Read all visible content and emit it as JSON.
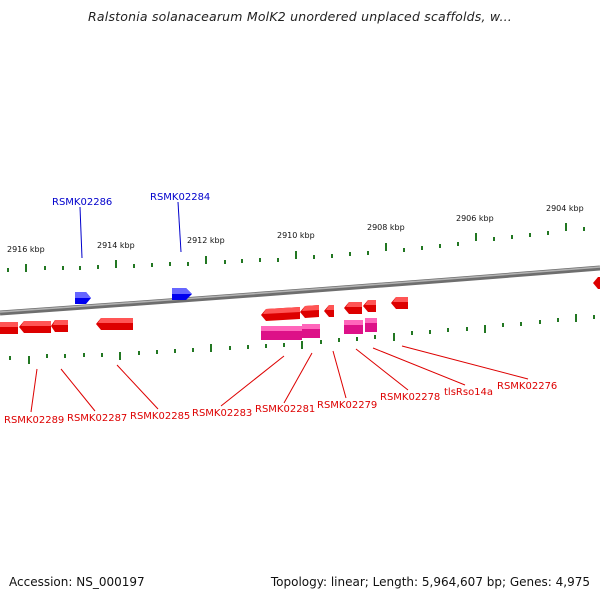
{
  "title": "Ralstonia solanacearum MolK2 unordered unplaced scaffolds, w...",
  "footer": {
    "accession": "Accession: NS_000197",
    "topology": "Topology: linear; Length: 5,964,607 bp; Genes: 4,975"
  },
  "colors": {
    "forward_gene": "#0000ee",
    "reverse_gene": "#ee0000",
    "rna_gene": "#ee1188",
    "tick": "#227722",
    "backbone": "#888888"
  },
  "scale_labels": [
    "2916 kbp",
    "2914 kbp",
    "2912 kbp",
    "2910 kbp",
    "2908 kbp",
    "2906 kbp",
    "2904 kbp"
  ],
  "forward_gene_labels": [
    "RSMK02286",
    "RSMK02284"
  ],
  "reverse_gene_labels": [
    "RSMK02289",
    "RSMK02287",
    "RSMK02285",
    "RSMK02283",
    "RSMK02281",
    "RSMK02279",
    "RSMK02278",
    "tlsRso14a",
    "RSMK02276"
  ]
}
